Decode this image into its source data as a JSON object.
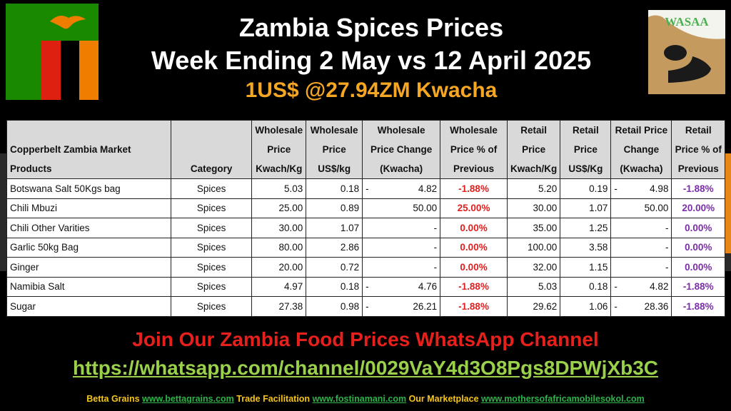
{
  "header": {
    "title_line1": "Zambia Spices Prices",
    "title_line2": "Week Ending 2 May vs 12 April 2025",
    "exchange_rate": "1US$ @27.94ZM Kwacha",
    "logo_text": "WASAA"
  },
  "colors": {
    "flag_green": "#198a00",
    "flag_red": "#de2010",
    "flag_black": "#000000",
    "flag_orange": "#ef7d00",
    "eagle": "#ef7d00",
    "negative_pct": "#e02020",
    "retail_pct": "#7a2ea8"
  },
  "table": {
    "headers": [
      "Copperbelt Zambia Market Products",
      "Category",
      "Wholesale Price Kwach/Kg",
      "Wholesale Price US$/kg",
      "Wholesale Price Change (Kwacha)",
      "Wholesale Price % of Previous",
      "Retail Price Kwach/Kg",
      "Retail Price US$/Kg",
      "Retail Price Change (Kwacha)",
      "Retail Price % of Previous"
    ],
    "rows": [
      {
        "product": "Botswana Salt 50Kgs bag",
        "category": "Spices",
        "w_kwacha": "5.03",
        "w_usd": "0.18",
        "w_change": "4.82",
        "w_change_neg": "-",
        "w_pct": "-1.88%",
        "r_kwacha": "5.20",
        "r_usd": "0.19",
        "r_change": "4.98",
        "r_change_neg": "-",
        "r_pct": "-1.88%"
      },
      {
        "product": "Chili Mbuzi",
        "category": "Spices",
        "w_kwacha": "25.00",
        "w_usd": "0.89",
        "w_change": "50.00",
        "w_change_neg": "",
        "w_pct": "25.00%",
        "r_kwacha": "30.00",
        "r_usd": "1.07",
        "r_change": "50.00",
        "r_change_neg": "",
        "r_pct": "20.00%"
      },
      {
        "product": "Chili Other Varities",
        "category": "Spices",
        "w_kwacha": "30.00",
        "w_usd": "1.07",
        "w_change": "-",
        "w_change_neg": "",
        "w_pct": "0.00%",
        "r_kwacha": "35.00",
        "r_usd": "1.25",
        "r_change": "-",
        "r_change_neg": "",
        "r_pct": "0.00%"
      },
      {
        "product": "Garlic 50kg Bag",
        "category": "Spices",
        "w_kwacha": "80.00",
        "w_usd": "2.86",
        "w_change": "-",
        "w_change_neg": "",
        "w_pct": "0.00%",
        "r_kwacha": "100.00",
        "r_usd": "3.58",
        "r_change": "-",
        "r_change_neg": "",
        "r_pct": "0.00%"
      },
      {
        "product": "Ginger",
        "category": "Spices",
        "w_kwacha": "20.00",
        "w_usd": "0.72",
        "w_change": "-",
        "w_change_neg": "",
        "w_pct": "0.00%",
        "r_kwacha": "32.00",
        "r_usd": "1.15",
        "r_change": "-",
        "r_change_neg": "",
        "r_pct": "0.00%"
      },
      {
        "product": "Namibia Salt",
        "category": "Spices",
        "w_kwacha": "4.97",
        "w_usd": "0.18",
        "w_change": "4.76",
        "w_change_neg": "-",
        "w_pct": "-1.88%",
        "r_kwacha": "5.03",
        "r_usd": "0.18",
        "r_change": "4.82",
        "r_change_neg": "-",
        "r_pct": "-1.88%"
      },
      {
        "product": "Sugar",
        "category": "Spices",
        "w_kwacha": "27.38",
        "w_usd": "0.98",
        "w_change": "26.21",
        "w_change_neg": "-",
        "w_pct": "-1.88%",
        "r_kwacha": "29.62",
        "r_usd": "1.06",
        "r_change": "28.36",
        "r_change_neg": "-",
        "r_pct": "-1.88%"
      }
    ]
  },
  "cta": {
    "join_text": "Join Our Zambia Food Prices WhatsApp Channel",
    "link": "https://whatsapp.com/channel/0029VaY4d3O8Pgs8DPWjXb3C"
  },
  "footer": {
    "label1": "Betta Grains",
    "link1": "www.bettagrains.com",
    "label2": "Trade Facilitation",
    "link2": "www.fostinamani.com",
    "label3": "Our Marketplace",
    "link3": "www.mothersofafricamobilesokol.com"
  }
}
